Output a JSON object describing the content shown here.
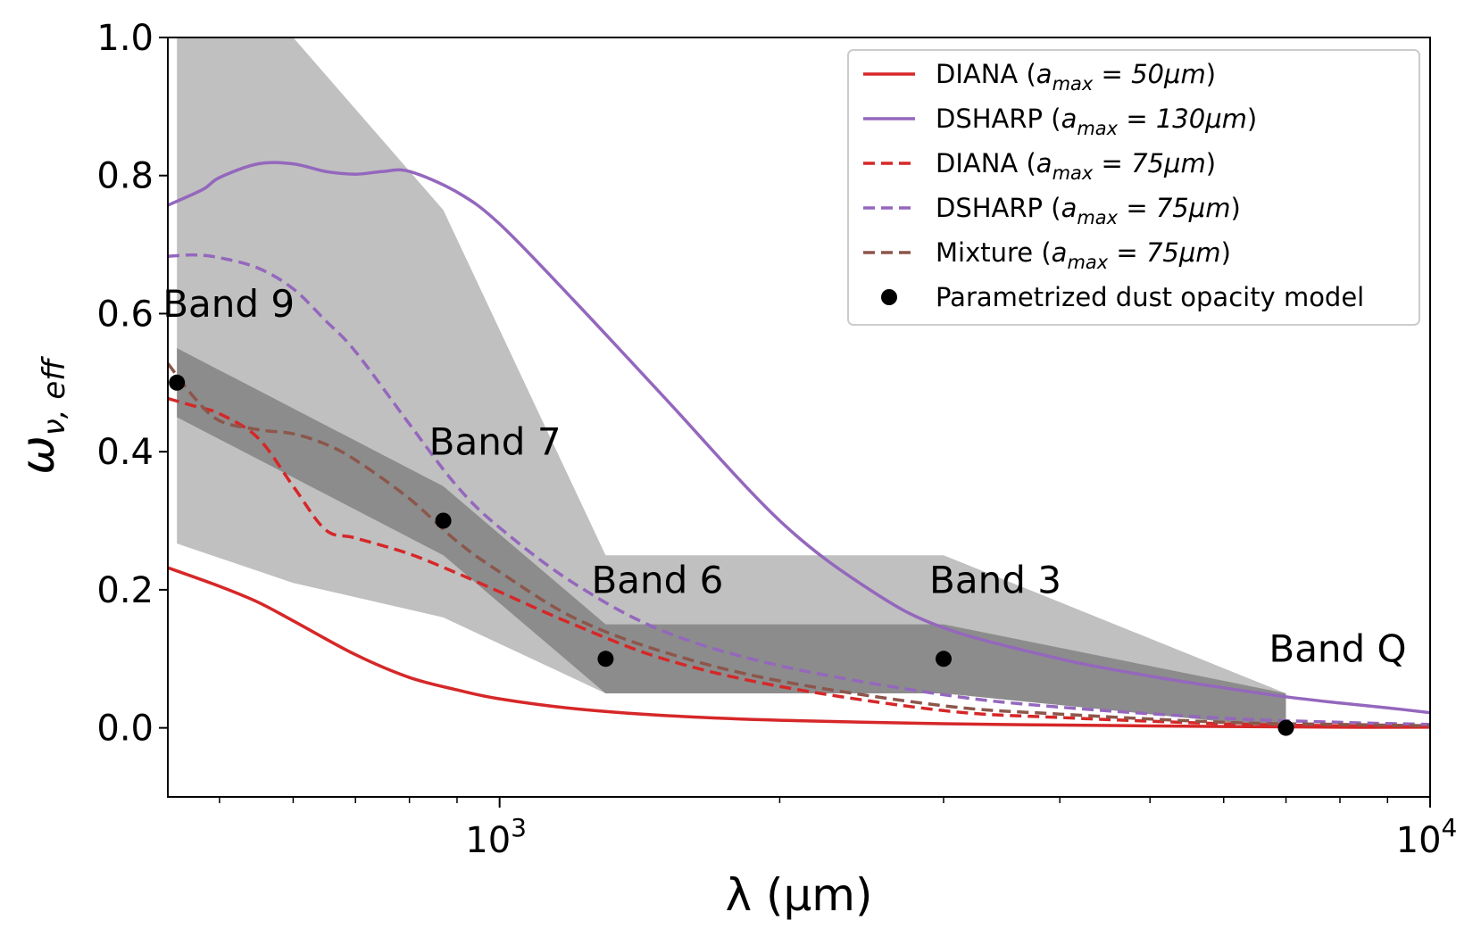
{
  "chart_data": {
    "type": "line",
    "xscale": "log",
    "xlim": [
      440,
      10000
    ],
    "ylim": [
      -0.1,
      1.0
    ],
    "xlabel": "λ (μm)",
    "ylabel": "ω",
    "ylabel_sub": "ν, eff",
    "x_tick_labels": [
      {
        "value": 1000,
        "base": "10",
        "exp": "3"
      },
      {
        "value": 10000,
        "base": "10",
        "exp": "4"
      }
    ],
    "x_minor_ticks": [
      500,
      600,
      700,
      800,
      900,
      2000,
      3000,
      4000,
      5000,
      6000,
      7000,
      8000,
      9000
    ],
    "y_ticks": [
      {
        "value": 0.0,
        "label": "0.0"
      },
      {
        "value": 0.2,
        "label": "0.2"
      },
      {
        "value": 0.4,
        "label": "0.4"
      },
      {
        "value": 0.6,
        "label": "0.6"
      },
      {
        "value": 0.8,
        "label": "0.8"
      },
      {
        "value": 1.0,
        "label": "1.0"
      }
    ],
    "legend_position": "top-right",
    "series": [
      {
        "name": "DIANA",
        "amax": "50μm",
        "color": "#d62728",
        "style": "solid",
        "x": [
          440,
          500,
          550,
          600,
          700,
          800,
          900,
          1000,
          1200,
          1500,
          2000,
          3000,
          4000,
          6000,
          8000,
          10000
        ],
        "y": [
          0.232,
          0.205,
          0.182,
          0.155,
          0.106,
          0.073,
          0.055,
          0.042,
          0.028,
          0.018,
          0.011,
          0.006,
          0.004,
          0.002,
          0.001,
          0.001
        ]
      },
      {
        "name": "DSHARP",
        "amax": "130μm",
        "color": "#9467bd",
        "style": "solid",
        "x": [
          440,
          480,
          500,
          550,
          600,
          650,
          700,
          750,
          800,
          900,
          1000,
          1200,
          1500,
          2000,
          2500,
          3000,
          4000,
          5000,
          6000,
          7000,
          8000,
          9000,
          10000
        ],
        "y": [
          0.757,
          0.78,
          0.797,
          0.817,
          0.817,
          0.806,
          0.802,
          0.806,
          0.806,
          0.776,
          0.73,
          0.62,
          0.48,
          0.3,
          0.2,
          0.145,
          0.1,
          0.075,
          0.058,
          0.045,
          0.036,
          0.029,
          0.022
        ]
      },
      {
        "name": "DIANA",
        "amax": "75μm",
        "color": "#d62728",
        "style": "dashed",
        "x": [
          440,
          470,
          500,
          550,
          600,
          650,
          700,
          800,
          900,
          1000,
          1200,
          1500,
          2000,
          3000,
          4000,
          6000,
          8000,
          10000
        ],
        "y": [
          0.477,
          0.466,
          0.455,
          0.42,
          0.35,
          0.287,
          0.275,
          0.252,
          0.224,
          0.197,
          0.15,
          0.1,
          0.06,
          0.025,
          0.015,
          0.006,
          0.003,
          0.002
        ]
      },
      {
        "name": "DSHARP",
        "amax": "75μm",
        "color": "#9467bd",
        "style": "dashed",
        "x": [
          440,
          470,
          500,
          550,
          600,
          650,
          700,
          800,
          900,
          1000,
          1200,
          1500,
          2000,
          3000,
          4000,
          6000,
          8000,
          10000
        ],
        "y": [
          0.683,
          0.685,
          0.681,
          0.666,
          0.636,
          0.59,
          0.545,
          0.44,
          0.35,
          0.29,
          0.21,
          0.14,
          0.09,
          0.048,
          0.03,
          0.014,
          0.008,
          0.005
        ]
      },
      {
        "name": "Mixture",
        "amax": "75μm",
        "color": "#8c564b",
        "style": "dashed",
        "x": [
          440,
          470,
          500,
          550,
          600,
          650,
          700,
          800,
          900,
          1000,
          1200,
          1500,
          2000,
          3000,
          4000,
          6000,
          8000,
          10000
        ],
        "y": [
          0.528,
          0.478,
          0.445,
          0.432,
          0.426,
          0.411,
          0.388,
          0.332,
          0.27,
          0.226,
          0.16,
          0.11,
          0.068,
          0.032,
          0.02,
          0.008,
          0.005,
          0.003
        ]
      }
    ],
    "points": {
      "name": "Parametrized dust opacity model",
      "color": "#000000",
      "items": [
        {
          "label": "Band 9",
          "x": 450,
          "y": 0.5
        },
        {
          "label": "Band 7",
          "x": 870,
          "y": 0.3
        },
        {
          "label": "Band 6",
          "x": 1300,
          "y": 0.1
        },
        {
          "label": "Band 3",
          "x": 3000,
          "y": 0.1
        },
        {
          "label": "Band Q",
          "x": 7000,
          "y": 0.0
        }
      ]
    },
    "bands": [
      {
        "color": "#c0c0c0",
        "x": [
          450,
          600,
          870,
          1300,
          3000,
          7000
        ],
        "low": [
          0.267,
          0.21,
          0.16,
          0.05,
          0.05,
          0.0
        ],
        "high": [
          1.0,
          1.0,
          0.75,
          0.25,
          0.25,
          0.05
        ]
      },
      {
        "color": "#8c8c8c",
        "x": [
          450,
          870,
          1300,
          3000,
          7000
        ],
        "low": [
          0.45,
          0.25,
          0.05,
          0.05,
          0.0
        ],
        "high": [
          0.55,
          0.35,
          0.15,
          0.15,
          0.05
        ]
      }
    ]
  }
}
